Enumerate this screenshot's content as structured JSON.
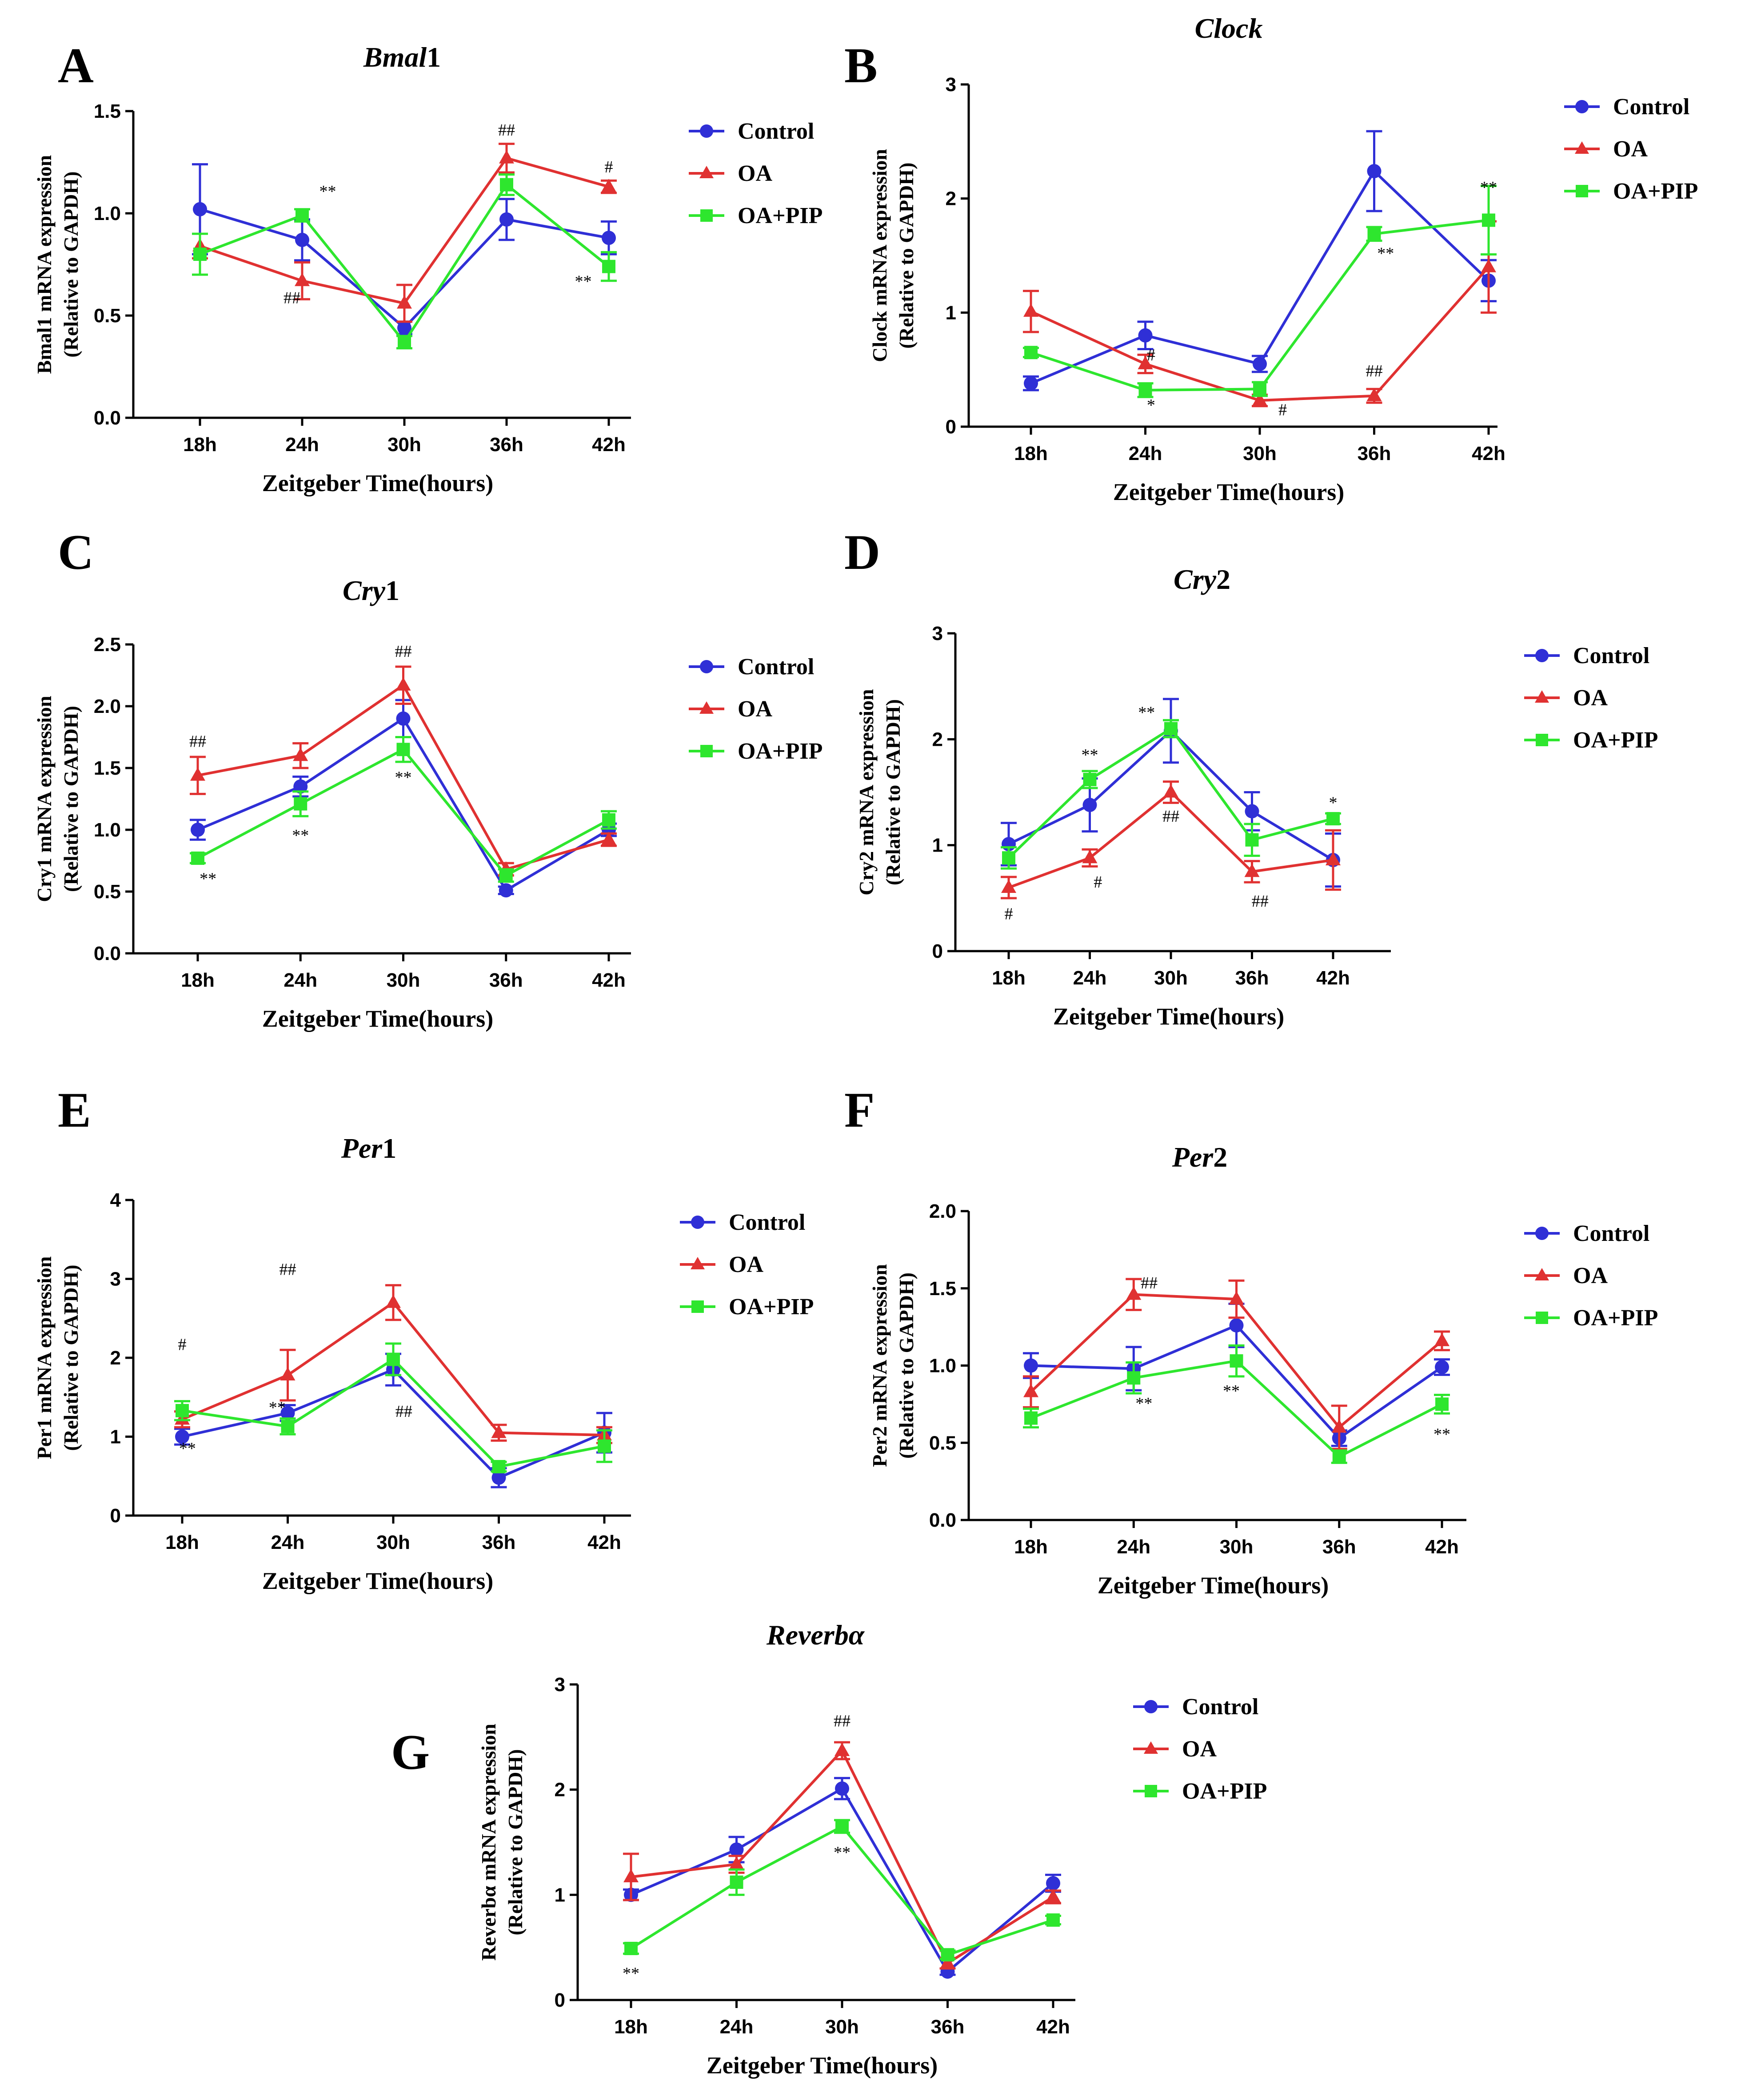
{
  "series_colors": {
    "Control": "#2f2fd6",
    "OA": "#e03131",
    "OA+PIP": "#2ee62e"
  },
  "legend": [
    "Control",
    "OA",
    "OA+PIP"
  ],
  "chart_data": [
    {
      "type": "line",
      "letter": "A",
      "title_italic": "Bmal",
      "title_plain": "1",
      "ylabel1": "Bmal1 mRNA expression",
      "ylabel2": "(Relative to GAPDH)",
      "xlabel": "Zeitgeber Time(hours)",
      "categories": [
        "18h",
        "24h",
        "30h",
        "36h",
        "42h"
      ],
      "ylim": [
        0,
        1.5
      ],
      "yticks": [
        "0.0",
        "0.5",
        "1.0",
        "1.5"
      ],
      "series": [
        {
          "name": "Control",
          "values": [
            1.02,
            0.87,
            0.44,
            0.97,
            0.88
          ],
          "errors": [
            0.22,
            0.1,
            0.03,
            0.1,
            0.08
          ]
        },
        {
          "name": "OA",
          "values": [
            0.84,
            0.67,
            0.56,
            1.27,
            1.13
          ],
          "errors": [
            0.06,
            0.09,
            0.09,
            0.07,
            0.03
          ]
        },
        {
          "name": "OA+PIP",
          "values": [
            0.8,
            0.99,
            0.37,
            1.14,
            0.74
          ],
          "errors": [
            0.1,
            0.03,
            0.03,
            0.05,
            0.07
          ]
        }
      ],
      "annotations": [
        {
          "text": "**",
          "x": 1.25,
          "y": 1.08
        },
        {
          "text": "##",
          "x": 0.9,
          "y": 0.56
        },
        {
          "text": "##",
          "x": 3.0,
          "y": 1.38
        },
        {
          "text": "#",
          "x": 4.0,
          "y": 1.2
        },
        {
          "text": "**",
          "x": 3.75,
          "y": 0.64
        }
      ]
    },
    {
      "type": "line",
      "letter": "B",
      "title_italic": "Clock",
      "title_plain": "",
      "ylabel1": "Clock mRNA expression",
      "ylabel2": "(Relative to GAPDH)",
      "xlabel": "Zeitgeber Time(hours)",
      "categories": [
        "18h",
        "24h",
        "30h",
        "36h",
        "42h"
      ],
      "ylim": [
        0,
        3
      ],
      "yticks": [
        "0",
        "1",
        "2",
        "3"
      ],
      "series": [
        {
          "name": "Control",
          "values": [
            0.38,
            0.8,
            0.55,
            2.24,
            1.28
          ],
          "errors": [
            0.06,
            0.12,
            0.07,
            0.35,
            0.18
          ]
        },
        {
          "name": "OA",
          "values": [
            1.01,
            0.55,
            0.23,
            0.27,
            1.4
          ],
          "errors": [
            0.18,
            0.08,
            0.05,
            0.06,
            0.4
          ]
        },
        {
          "name": "OA+PIP",
          "values": [
            0.65,
            0.32,
            0.33,
            1.69,
            1.81
          ],
          "errors": [
            0.04,
            0.06,
            0.06,
            0.06,
            0.3
          ]
        }
      ],
      "annotations": [
        {
          "text": "#",
          "x": 1.05,
          "y": 0.58
        },
        {
          "text": "*",
          "x": 1.05,
          "y": 0.14
        },
        {
          "text": "#",
          "x": 2.2,
          "y": 0.1
        },
        {
          "text": "##",
          "x": 3.0,
          "y": 0.44
        },
        {
          "text": "**",
          "x": 3.1,
          "y": 1.47
        },
        {
          "text": "**",
          "x": 4.0,
          "y": 2.05
        }
      ]
    },
    {
      "type": "line",
      "letter": "C",
      "title_italic": "Cry",
      "title_plain": "1",
      "ylabel1": "Cry1 mRNA expression",
      "ylabel2": "(Relative to GAPDH)",
      "xlabel": "Zeitgeber Time(hours)",
      "categories": [
        "18h",
        "24h",
        "30h",
        "36h",
        "42h"
      ],
      "ylim": [
        0,
        2.5
      ],
      "yticks": [
        "0.0",
        "0.5",
        "1.0",
        "1.5",
        "2.0",
        "2.5"
      ],
      "series": [
        {
          "name": "Control",
          "values": [
            1.0,
            1.35,
            1.9,
            0.51,
            1.0
          ],
          "errors": [
            0.08,
            0.08,
            0.15,
            0.03,
            0.05
          ]
        },
        {
          "name": "OA",
          "values": [
            1.44,
            1.6,
            2.17,
            0.68,
            0.92
          ],
          "errors": [
            0.15,
            0.1,
            0.15,
            0.05,
            0.05
          ]
        },
        {
          "name": "OA+PIP",
          "values": [
            0.77,
            1.21,
            1.65,
            0.63,
            1.08
          ],
          "errors": [
            0.04,
            0.1,
            0.1,
            0.05,
            0.07
          ]
        }
      ],
      "annotations": [
        {
          "text": "##",
          "x": 0.0,
          "y": 1.67
        },
        {
          "text": "**",
          "x": 0.1,
          "y": 0.56
        },
        {
          "text": "**",
          "x": 1.0,
          "y": 0.91
        },
        {
          "text": "##",
          "x": 2.0,
          "y": 2.4
        },
        {
          "text": "**",
          "x": 2.0,
          "y": 1.38
        }
      ]
    },
    {
      "type": "line",
      "letter": "D",
      "title_italic": "Cry",
      "title_plain": "2",
      "ylabel1": "Cry2 mRNA expression",
      "ylabel2": "(Relative to GAPDH)",
      "xlabel": "Zeitgeber Time(hours)",
      "categories": [
        "18h",
        "24h",
        "30h",
        "36h",
        "42h"
      ],
      "ylim": [
        0,
        3
      ],
      "yticks": [
        "0",
        "1",
        "2",
        "3"
      ],
      "series": [
        {
          "name": "Control",
          "values": [
            1.01,
            1.38,
            2.08,
            1.32,
            0.86
          ],
          "errors": [
            0.2,
            0.25,
            0.3,
            0.18,
            0.25
          ]
        },
        {
          "name": "OA",
          "values": [
            0.6,
            0.88,
            1.5,
            0.75,
            0.86
          ],
          "errors": [
            0.1,
            0.08,
            0.1,
            0.1,
            0.28
          ]
        },
        {
          "name": "OA+PIP",
          "values": [
            0.88,
            1.62,
            2.1,
            1.05,
            1.25
          ],
          "errors": [
            0.1,
            0.08,
            0.08,
            0.15,
            0.05
          ]
        }
      ],
      "annotations": [
        {
          "text": "#",
          "x": 0.0,
          "y": 0.3
        },
        {
          "text": "**",
          "x": 1.0,
          "y": 1.8
        },
        {
          "text": "#",
          "x": 1.1,
          "y": 0.6
        },
        {
          "text": "**",
          "x": 1.7,
          "y": 2.2
        },
        {
          "text": "##",
          "x": 2.0,
          "y": 1.22
        },
        {
          "text": "##",
          "x": 3.1,
          "y": 0.42
        },
        {
          "text": "*",
          "x": 4.0,
          "y": 1.35
        }
      ]
    },
    {
      "type": "line",
      "letter": "E",
      "title_italic": "Per",
      "title_plain": "1",
      "ylabel1": "Per1 mRNA expression",
      "ylabel2": "(Relative to GAPDH)",
      "xlabel": "Zeitgeber Time(hours)",
      "categories": [
        "18h",
        "24h",
        "30h",
        "36h",
        "42h"
      ],
      "ylim": [
        0,
        4
      ],
      "yticks": [
        "0",
        "1",
        "2",
        "3",
        "4"
      ],
      "series": [
        {
          "name": "Control",
          "values": [
            1.0,
            1.3,
            1.85,
            0.48,
            1.05
          ],
          "errors": [
            0.1,
            0.1,
            0.2,
            0.12,
            0.25
          ]
        },
        {
          "name": "OA",
          "values": [
            1.22,
            1.78,
            2.7,
            1.05,
            1.02
          ],
          "errors": [
            0.1,
            0.32,
            0.22,
            0.1,
            0.1
          ]
        },
        {
          "name": "OA+PIP",
          "values": [
            1.33,
            1.13,
            1.98,
            0.62,
            0.88
          ],
          "errors": [
            0.12,
            0.1,
            0.2,
            0.06,
            0.2
          ]
        }
      ],
      "annotations": [
        {
          "text": "#",
          "x": 0.0,
          "y": 2.1
        },
        {
          "text": "**",
          "x": 0.05,
          "y": 0.78
        },
        {
          "text": "**",
          "x": 0.9,
          "y": 1.3
        },
        {
          "text": "##",
          "x": 1.0,
          "y": 3.05
        },
        {
          "text": "##",
          "x": 2.1,
          "y": 1.25
        }
      ]
    },
    {
      "type": "line",
      "letter": "F",
      "title_italic": "Per",
      "title_plain": "2",
      "ylabel1": "Per2 mRNA expression",
      "ylabel2": "(Relative to GAPDH)",
      "xlabel": "Zeitgeber Time(hours)",
      "categories": [
        "18h",
        "24h",
        "30h",
        "36h",
        "42h"
      ],
      "ylim": [
        0,
        2
      ],
      "yticks": [
        "0.0",
        "0.5",
        "1.0",
        "1.5",
        "2.0"
      ],
      "series": [
        {
          "name": "Control",
          "values": [
            1.0,
            0.98,
            1.26,
            0.53,
            0.99
          ],
          "errors": [
            0.08,
            0.14,
            0.14,
            0.05,
            0.05
          ]
        },
        {
          "name": "OA",
          "values": [
            0.83,
            1.46,
            1.43,
            0.6,
            1.16
          ],
          "errors": [
            0.1,
            0.1,
            0.12,
            0.14,
            0.06
          ]
        },
        {
          "name": "OA+PIP",
          "values": [
            0.66,
            0.92,
            1.03,
            0.41,
            0.75
          ],
          "errors": [
            0.06,
            0.1,
            0.1,
            0.04,
            0.06
          ]
        }
      ],
      "annotations": [
        {
          "text": "##",
          "x": 1.15,
          "y": 1.5
        },
        {
          "text": "**",
          "x": 1.1,
          "y": 0.72
        },
        {
          "text": "**",
          "x": 1.95,
          "y": 0.8
        },
        {
          "text": "**",
          "x": 4.0,
          "y": 0.52
        }
      ]
    },
    {
      "type": "line",
      "letter": "G",
      "title_italic": "Reverbα",
      "title_plain": "",
      "ylabel1": "Reverbα mRNA expression",
      "ylabel2": "(Relative to GAPDH)",
      "xlabel": "Zeitgeber Time(hours)",
      "categories": [
        "18h",
        "24h",
        "30h",
        "36h",
        "42h"
      ],
      "ylim": [
        0,
        3
      ],
      "yticks": [
        "0",
        "1",
        "2",
        "3"
      ],
      "series": [
        {
          "name": "Control",
          "values": [
            1.0,
            1.43,
            2.01,
            0.27,
            1.11
          ],
          "errors": [
            0.05,
            0.12,
            0.1,
            0.03,
            0.08
          ]
        },
        {
          "name": "OA",
          "values": [
            1.17,
            1.29,
            2.37,
            0.35,
            0.98
          ],
          "errors": [
            0.22,
            0.08,
            0.08,
            0.05,
            0.06
          ]
        },
        {
          "name": "OA+PIP",
          "values": [
            0.49,
            1.12,
            1.65,
            0.43,
            0.76
          ],
          "errors": [
            0.05,
            0.12,
            0.06,
            0.04,
            0.04
          ]
        }
      ],
      "annotations": [
        {
          "text": "##",
          "x": 2.0,
          "y": 2.6
        },
        {
          "text": "**",
          "x": 2.0,
          "y": 1.35
        },
        {
          "text": "**",
          "x": 0.0,
          "y": 0.2
        }
      ]
    }
  ]
}
